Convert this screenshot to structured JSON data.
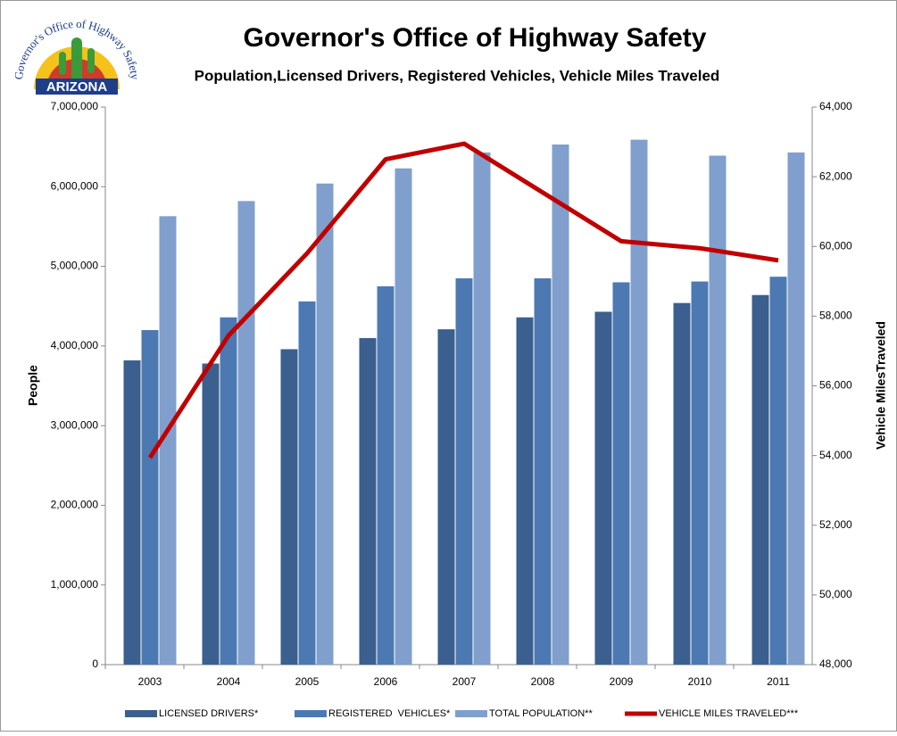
{
  "logo": {
    "arc_text": "Governor's Office of Highway Safety",
    "state": "ARIZONA"
  },
  "chart_data": {
    "type": "bar_line",
    "title": "Governor's Office of Highway Safety",
    "subtitle": "Population,Licensed  Drivers, Registered Vehicles, Vehicle Miles Traveled",
    "y_label": "People",
    "y2_label": "Vehicle MilesTraveled",
    "categories": [
      "2003",
      "2004",
      "2005",
      "2006",
      "2007",
      "2008",
      "2009",
      "2010",
      "2011"
    ],
    "series": [
      {
        "name": "LICENSED DRIVERS*",
        "color": "#3b5f8e",
        "kind": "bar",
        "values": [
          3820000,
          3780000,
          3960000,
          4100000,
          4210000,
          4360000,
          4430000,
          4540000,
          4640000
        ]
      },
      {
        "name": "REGISTERED  VEHICLES*",
        "color": "#4c79b2",
        "kind": "bar",
        "values": [
          4200000,
          4360000,
          4560000,
          4750000,
          4850000,
          4850000,
          4800000,
          4810000,
          4870000
        ]
      },
      {
        "name": "TOTAL POPULATION**",
        "color": "#809fcd",
        "kind": "bar",
        "values": [
          5630000,
          5820000,
          6040000,
          6230000,
          6430000,
          6530000,
          6590000,
          6390000,
          6430000
        ]
      },
      {
        "name": "VEHICLE MILES TRAVELED***",
        "color": "#c00000",
        "kind": "line",
        "axis": "y2",
        "values": [
          53940,
          57440,
          59800,
          62500,
          62950,
          61550,
          60150,
          59950,
          59600
        ]
      }
    ],
    "ylim": [
      0,
      7000000
    ],
    "yticks": [
      0,
      {
        "value": 1000000,
        "label": "1,000,000"
      },
      {
        "value": 2000000,
        "label": "2,000,000"
      },
      {
        "value": 3000000,
        "label": "3,000,000"
      },
      {
        "value": 4000000,
        "label": "4,000,000"
      },
      {
        "value": 5000000,
        "label": "5,000,000"
      },
      {
        "value": 6000000,
        "label": "6,000,000"
      },
      {
        "value": 7000000,
        "label": "7,000,000"
      }
    ],
    "y2lim": [
      48000,
      64000
    ],
    "y2ticks": [
      {
        "value": 48000,
        "label": "48,000"
      },
      {
        "value": 50000,
        "label": "50,000"
      },
      {
        "value": 52000,
        "label": "52,000"
      },
      {
        "value": 54000,
        "label": "54,000"
      },
      {
        "value": 56000,
        "label": "56,000"
      },
      {
        "value": 58000,
        "label": "58,000"
      },
      {
        "value": 60000,
        "label": "60,000"
      },
      {
        "value": 62000,
        "label": "62,000"
      },
      {
        "value": 64000,
        "label": "64,000"
      }
    ],
    "grid": false,
    "legend": "bottom"
  }
}
